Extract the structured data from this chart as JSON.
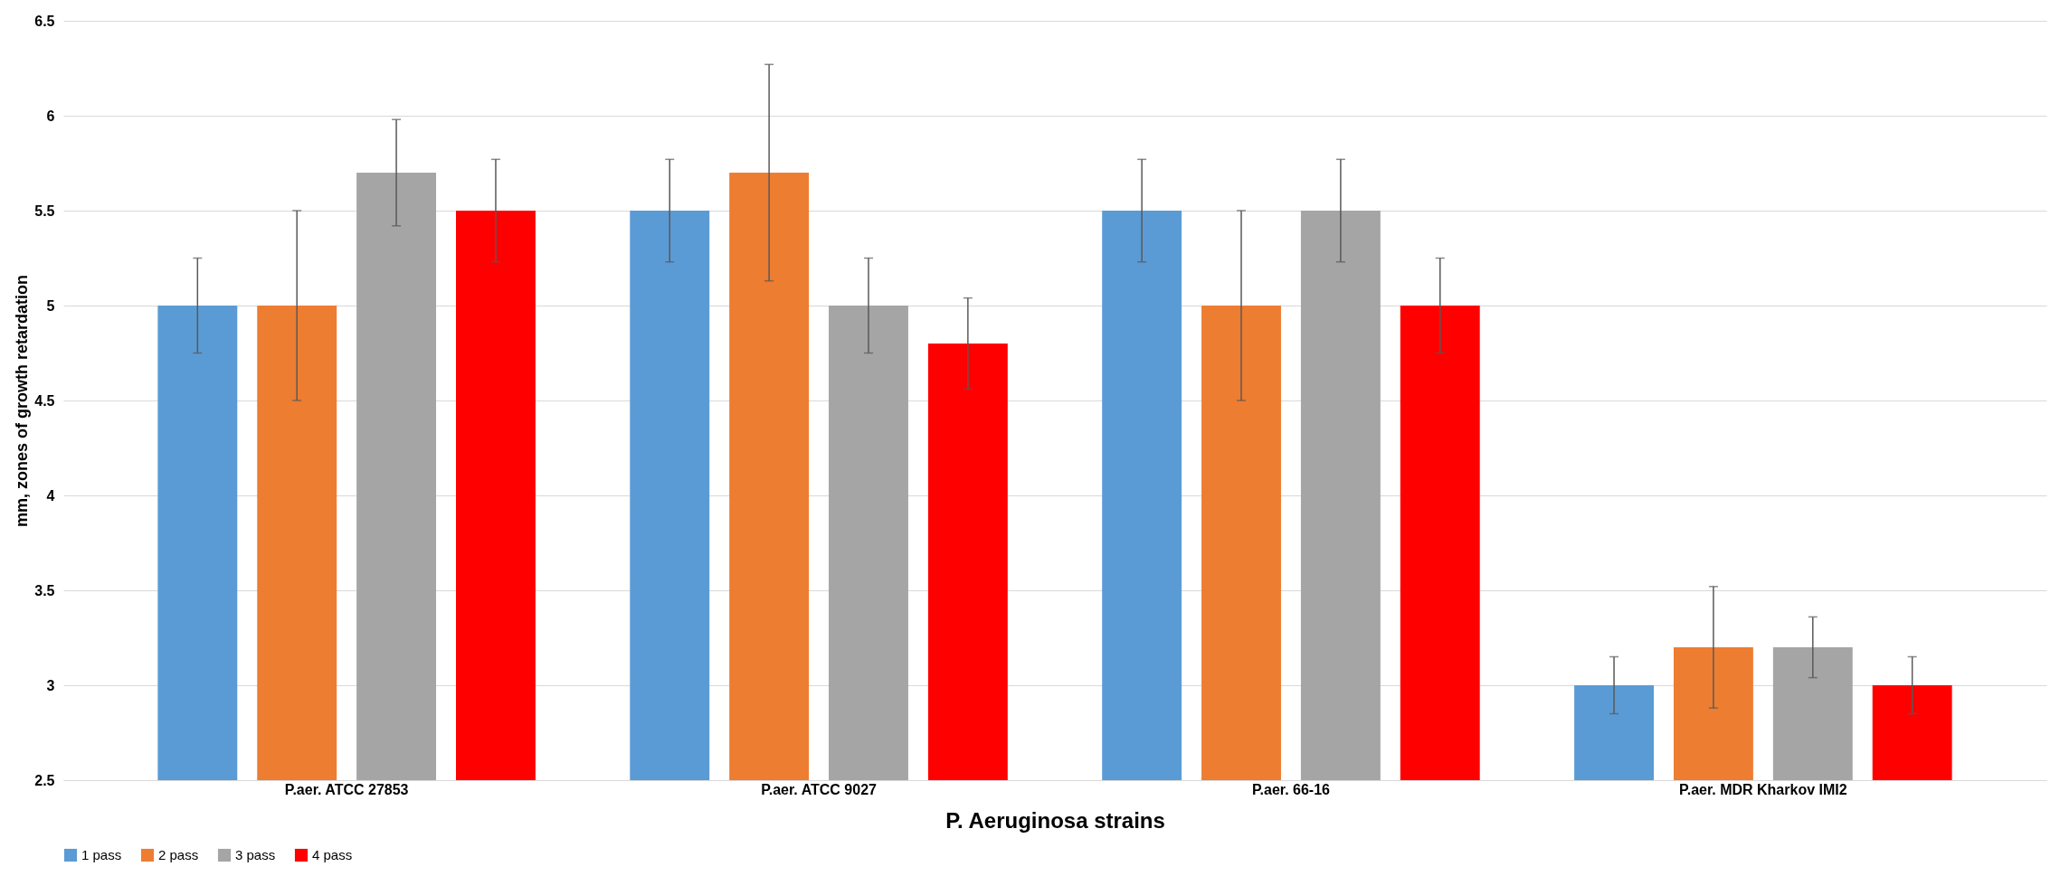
{
  "chart_data": {
    "type": "bar",
    "xlabel": "P. Aeruginosa strains",
    "ylabel": "mm, zones of growth retardation",
    "categories": [
      "P.aer. ATCC 27853",
      "P.aer. ATCC 9027",
      "P.aer. 66-16",
      "P.aer. MDR Kharkov IMI2"
    ],
    "series": [
      {
        "name": "1 pass",
        "color": "#5b9bd5",
        "values": [
          5.0,
          5.5,
          5.5,
          3.0
        ],
        "errors": [
          0.25,
          0.27,
          0.27,
          0.15
        ]
      },
      {
        "name": "2 pass",
        "color": "#ed7d31",
        "values": [
          5.0,
          5.7,
          5.0,
          3.2
        ],
        "errors": [
          0.5,
          0.57,
          0.5,
          0.32
        ]
      },
      {
        "name": "3 pass",
        "color": "#a5a5a5",
        "values": [
          5.7,
          5.0,
          5.5,
          3.2
        ],
        "errors": [
          0.28,
          0.25,
          0.27,
          0.16
        ]
      },
      {
        "name": "4 pass",
        "color": "#ff0000",
        "values": [
          5.5,
          4.8,
          5.0,
          3.0
        ],
        "errors": [
          0.27,
          0.24,
          0.25,
          0.15
        ]
      }
    ],
    "ylim": [
      2.5,
      6.5
    ],
    "yticks": [
      2.5,
      3,
      3.5,
      4,
      4.5,
      5,
      5.5,
      6,
      6.5
    ],
    "grid": "y",
    "legend": "bottom"
  }
}
